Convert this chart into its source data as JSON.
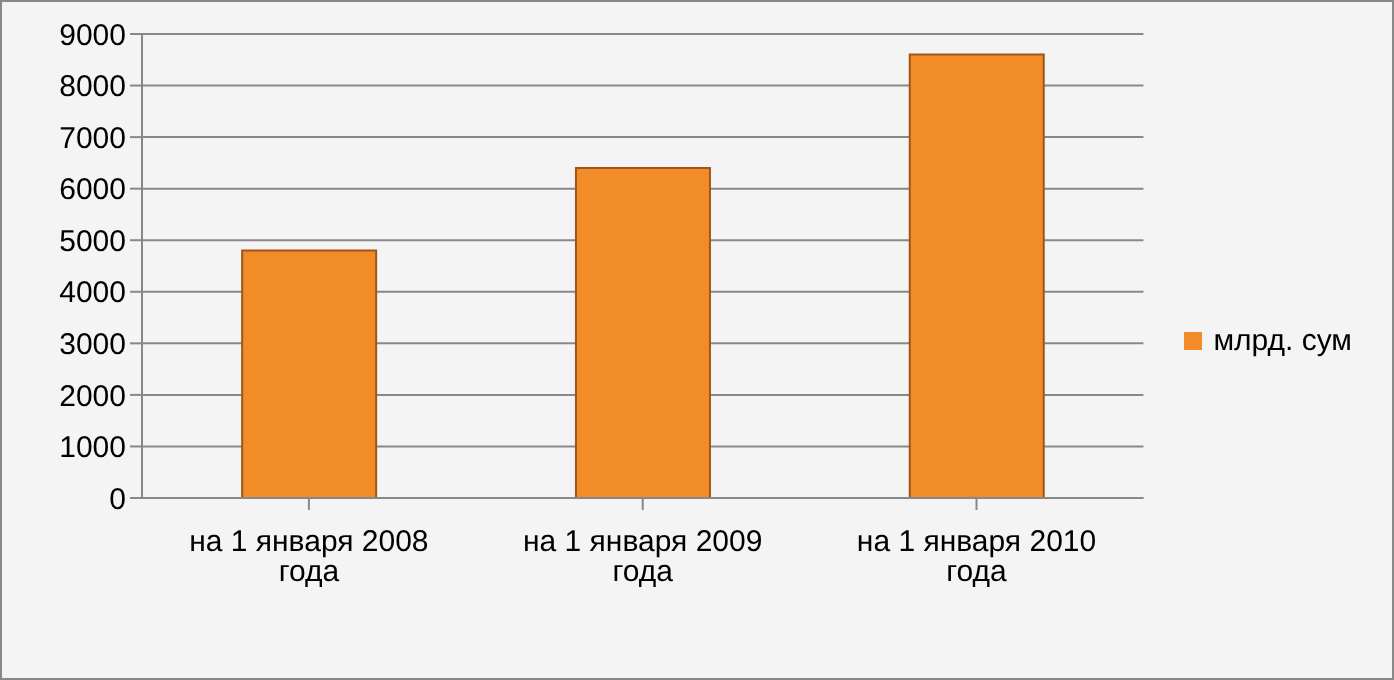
{
  "chart_data": {
    "type": "bar",
    "categories": [
      "на 1 января 2008 года",
      "на 1 января 2009 года",
      "на 1 января 2010 года"
    ],
    "series": [
      {
        "name": "млрд. сум",
        "color": "#f28c28",
        "values": [
          4800,
          6400,
          8600
        ]
      }
    ],
    "ylim": [
      0,
      9000
    ],
    "yticks": [
      0,
      1000,
      2000,
      3000,
      4000,
      5000,
      6000,
      7000,
      8000,
      9000
    ],
    "grid": "y",
    "legend": "right"
  }
}
